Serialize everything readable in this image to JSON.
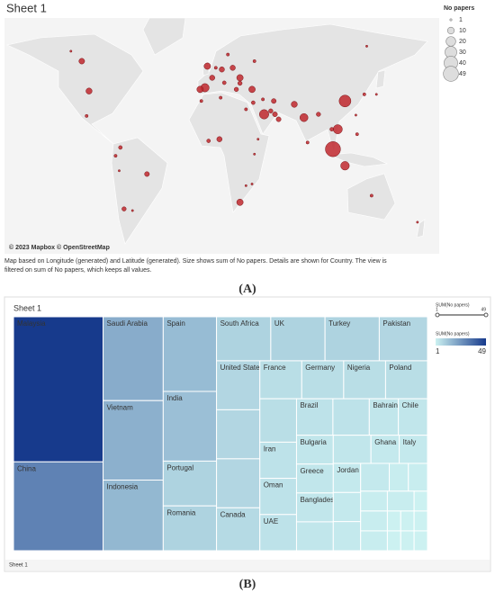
{
  "chart_data": [
    {
      "type": "map",
      "title": "Sheet 1",
      "legend_title": "No papers",
      "size_legend": [
        1,
        10,
        20,
        30,
        40,
        49
      ],
      "attribution": "© 2023 Mapbox © OpenStreetMap",
      "caption": [
        "Map based on Longitude (generated) and Latitude (generated).  Size shows sum of No papers.  Details are shown for Country. The view is",
        "filtered on sum of No papers, which keeps all values."
      ],
      "panel_label": "(A)",
      "color": "#c0282e",
      "points": [
        {
          "lon": 102,
          "lat": 3,
          "value": 49
        },
        {
          "lon": 112,
          "lat": 32,
          "value": 30
        },
        {
          "lon": -4,
          "lat": 40,
          "value": 15
        },
        {
          "lon": 78,
          "lat": 22,
          "value": 14
        },
        {
          "lon": 106,
          "lat": 15,
          "value": 18
        },
        {
          "lon": 45,
          "lat": 24,
          "value": 19
        },
        {
          "lon": 112,
          "lat": -7,
          "value": 16
        },
        {
          "lon": 70,
          "lat": 30,
          "value": 8
        },
        {
          "lon": -100,
          "lat": 38,
          "value": 8
        },
        {
          "lon": -8,
          "lat": 39,
          "value": 9
        },
        {
          "lon": 25,
          "lat": 46,
          "value": 9
        },
        {
          "lon": 25,
          "lat": -29,
          "value": 9
        },
        {
          "lon": -2,
          "lat": 53,
          "value": 9
        },
        {
          "lon": 35,
          "lat": 39,
          "value": 9
        },
        {
          "lon": -106,
          "lat": 56,
          "value": 7
        },
        {
          "lon": 2,
          "lat": 46,
          "value": 6
        },
        {
          "lon": 53,
          "lat": 32,
          "value": 5
        },
        {
          "lon": 10,
          "lat": 51,
          "value": 6
        },
        {
          "lon": 57,
          "lat": 21,
          "value": 5
        },
        {
          "lon": 50.5,
          "lat": 26,
          "value": 4
        },
        {
          "lon": 8,
          "lat": 9,
          "value": 6
        },
        {
          "lon": 54,
          "lat": 24,
          "value": 5
        },
        {
          "lon": -71,
          "lat": -33,
          "value": 4
        },
        {
          "lon": 19,
          "lat": 52,
          "value": 6
        },
        {
          "lon": 25,
          "lat": 42.7,
          "value": 4
        },
        {
          "lon": -1,
          "lat": 8,
          "value": 3
        },
        {
          "lon": 22,
          "lat": 39,
          "value": 4
        },
        {
          "lon": 12,
          "lat": 43,
          "value": 3
        },
        {
          "lon": -52,
          "lat": -12,
          "value": 5
        },
        {
          "lon": 90,
          "lat": 24,
          "value": 4
        },
        {
          "lon": 36,
          "lat": 31,
          "value": 3
        },
        {
          "lon": -102,
          "lat": 23,
          "value": 2
        },
        {
          "lon": -74,
          "lat": 4,
          "value": 3
        },
        {
          "lon": -75,
          "lat": -10,
          "value": 1
        },
        {
          "lon": 130,
          "lat": 65,
          "value": 1
        },
        {
          "lon": 138,
          "lat": 36,
          "value": 1
        },
        {
          "lon": 134,
          "lat": -25,
          "value": 2
        },
        {
          "lon": 172,
          "lat": -41,
          "value": 1
        },
        {
          "lon": 30,
          "lat": 27,
          "value": 2
        },
        {
          "lon": 37,
          "lat": 0,
          "value": 1
        },
        {
          "lon": 40,
          "lat": 9,
          "value": 1
        },
        {
          "lon": 44,
          "lat": 33,
          "value": 2
        },
        {
          "lon": 101,
          "lat": 15,
          "value": 3
        },
        {
          "lon": 122,
          "lat": 12,
          "value": 2
        },
        {
          "lon": 128,
          "lat": 36,
          "value": 2
        },
        {
          "lon": -78,
          "lat": -1,
          "value": 2
        },
        {
          "lon": -7,
          "lat": 32,
          "value": 2
        },
        {
          "lon": 9,
          "lat": 34,
          "value": 2
        },
        {
          "lon": 37,
          "lat": 56,
          "value": 2
        },
        {
          "lon": 15,
          "lat": 60,
          "value": 2
        },
        {
          "lon": 5,
          "lat": 52,
          "value": 2
        },
        {
          "lon": 81,
          "lat": 7,
          "value": 2
        },
        {
          "lon": 35,
          "lat": -18,
          "value": 1
        },
        {
          "lon": -64,
          "lat": -34,
          "value": 1
        },
        {
          "lon": -115,
          "lat": 62,
          "value": 1
        },
        {
          "lon": 121,
          "lat": 23.5,
          "value": 1
        },
        {
          "lon": 30,
          "lat": -19,
          "value": 1
        }
      ]
    },
    {
      "type": "treemap",
      "title": "Sheet 1",
      "legend_title": "SUM(No papers)",
      "color_legend": [
        1,
        49
      ],
      "color_range": [
        "#ccf1f1",
        "#173a8c"
      ],
      "panel_label": "(B)",
      "categories": [
        "Malaysia",
        "China",
        "Saudi Arabia",
        "Vietnam",
        "Indonesia",
        "Spain",
        "India",
        "Portugal",
        "Romania",
        "South Africa",
        "UK",
        "Turkey",
        "Pakistan",
        "United States",
        null,
        null,
        "Canada",
        "France",
        "Germany",
        "Nigeria",
        "Poland",
        null,
        "Iran",
        "Oman",
        "UAE",
        "Brazil",
        null,
        "Bahrain",
        "Chile",
        "Bulgaria",
        "Greece",
        "Bangladesh",
        null,
        null,
        "Ghana",
        "Italy",
        "Jordan",
        null,
        null,
        null,
        null,
        null,
        null,
        null,
        null,
        null,
        null,
        null,
        null,
        null,
        null,
        null,
        null
      ],
      "values": [
        49,
        30,
        19,
        18,
        16,
        15,
        14,
        9,
        9,
        9,
        9,
        9,
        8,
        8,
        8,
        8,
        7,
        6,
        6,
        6,
        6,
        6,
        5,
        5,
        5,
        5,
        5,
        4,
        4,
        4,
        4,
        4,
        4,
        4,
        3,
        3,
        3,
        3,
        3,
        3,
        2,
        2,
        2,
        2,
        2,
        2,
        1,
        1,
        1,
        1,
        1,
        1,
        1
      ]
    }
  ]
}
